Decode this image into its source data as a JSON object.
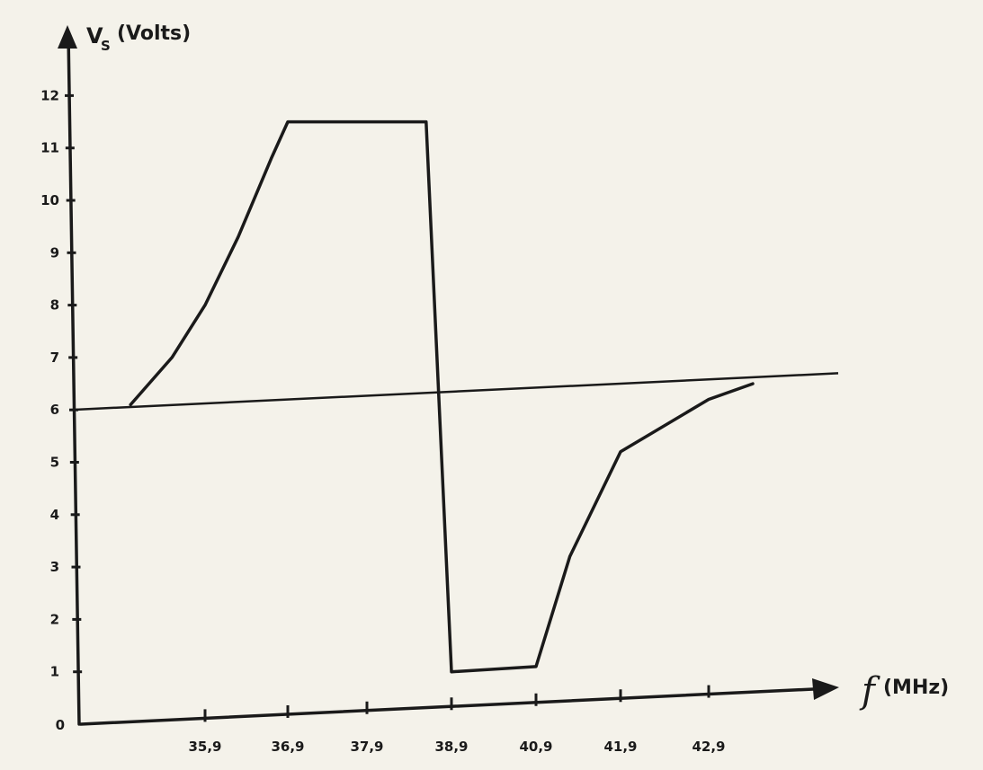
{
  "chart_data": {
    "type": "line",
    "title": "",
    "ylabel": {
      "symbol": "V",
      "subscript": "S",
      "unit": "(Volts)"
    },
    "xlabel": {
      "symbol": "f",
      "unit": "(MHz)"
    },
    "y_ticks": [
      "1",
      "2",
      "3",
      "4",
      "5",
      "6",
      "7",
      "8",
      "9",
      "10",
      "11",
      "12"
    ],
    "y_zero_label": "0",
    "x_ticks": [
      "35,9",
      "36,9",
      "37,9",
      "38,9",
      "40,9",
      "41,9",
      "42,9"
    ],
    "ylim": [
      0,
      12
    ],
    "grid": false,
    "legend": "none",
    "series": [
      {
        "values_by_x": [
          {
            "x": "35,0",
            "y": 6.1
          },
          {
            "x": "35,5",
            "y": 7.0
          },
          {
            "x": "35,9",
            "y": 8.0
          },
          {
            "x": "36,3",
            "y": 9.3
          },
          {
            "x": "36,7",
            "y": 10.8
          },
          {
            "x": "36,9",
            "y": 11.5
          },
          {
            "x": "38,6",
            "y": 11.5
          },
          {
            "x": "38,9",
            "y": 1.0
          },
          {
            "x": "40,9",
            "y": 1.1
          },
          {
            "x": "41,3",
            "y": 3.2
          },
          {
            "x": "41,9",
            "y": 5.2
          },
          {
            "x": "42,9",
            "y": 6.2
          },
          {
            "x": "43,4",
            "y": 6.5
          }
        ]
      }
    ],
    "reference_line": {
      "y_start": 6.0,
      "y_end": 6.7
    },
    "colors": {
      "ink": "#1a1a1a",
      "paper": "#f4f2ea"
    }
  }
}
